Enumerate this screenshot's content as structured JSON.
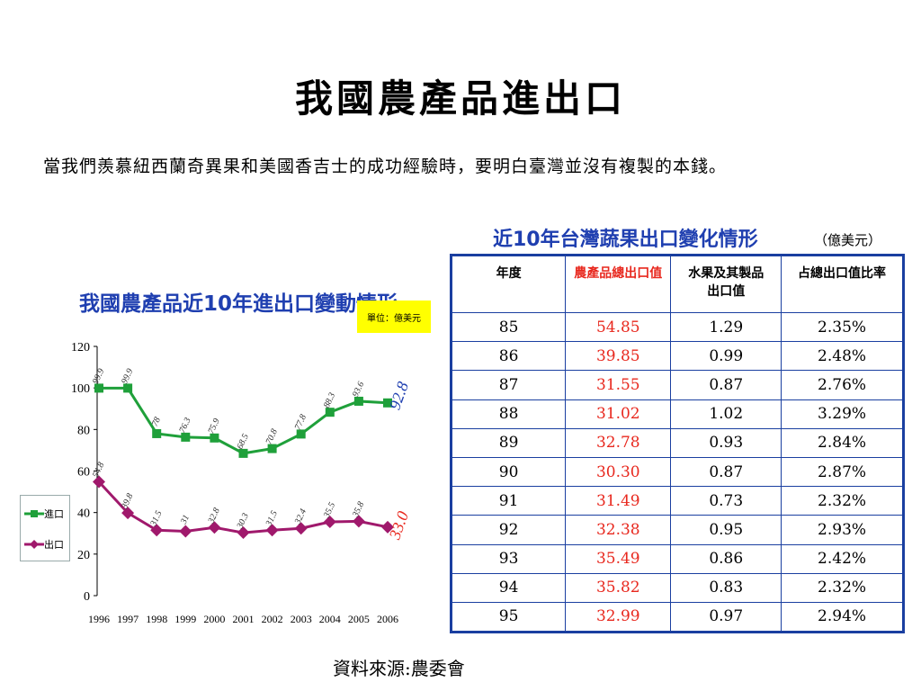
{
  "title": "我國農產品進出口",
  "subtitle": "當我們羨慕紐西蘭奇異果和美國香吉士的成功經驗時，要明白臺灣並沒有複製的本錢。",
  "source": "資料來源:農委會",
  "colors": {
    "import": "#1fa03a",
    "export": "#a0196c",
    "accent_blue": "#1f3fb0",
    "table_red": "#e8281e"
  },
  "chart_data": [
    {
      "type": "line",
      "title": "我國農產品近10年進出口變動情形",
      "unit_label": "單位：億美元",
      "x": [
        "1996",
        "1997",
        "1998",
        "1999",
        "2000",
        "2001",
        "2002",
        "2003",
        "2004",
        "2005",
        "2006"
      ],
      "ylim": [
        0,
        120
      ],
      "yticks": [
        "0",
        "20",
        "40",
        "60",
        "80",
        "100",
        "120"
      ],
      "series": [
        {
          "name": "進口",
          "values": [
            99.9,
            99.9,
            78,
            76.3,
            75.9,
            68.5,
            70.8,
            77.8,
            88.3,
            93.6,
            92.8
          ],
          "labels": [
            "99.9",
            "99.9",
            "78",
            "76.3",
            "75.9",
            "68.5",
            "70.8",
            "77.8",
            "88.3",
            "93.6",
            "92.8"
          ]
        },
        {
          "name": "出口",
          "values": [
            54.8,
            39.8,
            31.5,
            31,
            32.8,
            30.3,
            31.5,
            32.4,
            35.5,
            35.8,
            33.0
          ],
          "labels": [
            "54.8",
            "39.8",
            "31.5",
            "31",
            "32.8",
            "30.3",
            "31.5",
            "32.4",
            "35.5",
            "35.8",
            "33.0"
          ]
        }
      ]
    },
    {
      "type": "table",
      "title": "近10年台灣蔬果出口變化情形",
      "unit_label": "（億美元）",
      "columns": [
        "年度",
        "農產品總出口值",
        "水果及其製品出口值",
        "占總出口值比率"
      ],
      "column_lines": [
        [
          "年度"
        ],
        [
          "農產品總出口值"
        ],
        [
          "水果及其製品",
          "出口值"
        ],
        [
          "占總出口值比率"
        ]
      ],
      "rows": [
        [
          "85",
          "54.85",
          "1.29",
          "2.35%"
        ],
        [
          "86",
          "39.85",
          "0.99",
          "2.48%"
        ],
        [
          "87",
          "31.55",
          "0.87",
          "2.76%"
        ],
        [
          "88",
          "31.02",
          "1.02",
          "3.29%"
        ],
        [
          "89",
          "32.78",
          "0.93",
          "2.84%"
        ],
        [
          "90",
          "30.30",
          "0.87",
          "2.87%"
        ],
        [
          "91",
          "31.49",
          "0.73",
          "2.32%"
        ],
        [
          "92",
          "32.38",
          "0.95",
          "2.93%"
        ],
        [
          "93",
          "35.49",
          "0.86",
          "2.42%"
        ],
        [
          "94",
          "35.82",
          "0.83",
          "2.32%"
        ],
        [
          "95",
          "32.99",
          "0.97",
          "2.94%"
        ]
      ]
    }
  ]
}
